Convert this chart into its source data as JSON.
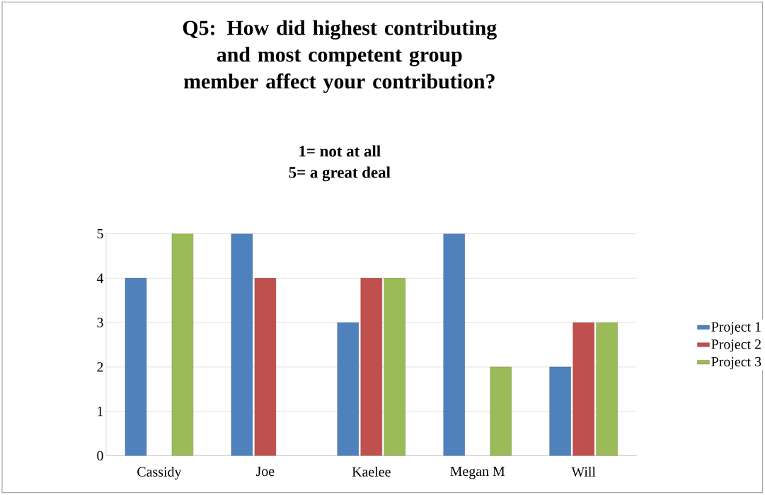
{
  "chart_data": {
    "type": "bar",
    "title": "Q5: How did highest contributing and most competent group member affect your contribution?",
    "subtitle": "1= not at all",
    "annotations": [
      "5= a great deal"
    ],
    "categories": [
      "Cassidy",
      "Joe",
      "Kaelee",
      "Megan M",
      "Will"
    ],
    "series": [
      {
        "name": "Project 1",
        "color": "#4f81bd",
        "values": [
          4,
          5,
          3,
          5,
          2
        ]
      },
      {
        "name": "Project 2",
        "color": "#c0504d",
        "values": [
          null,
          4,
          4,
          null,
          3
        ]
      },
      {
        "name": "Project 3",
        "color": "#9bbb59",
        "values": [
          5,
          null,
          4,
          2,
          3
        ]
      }
    ],
    "ylim": [
      0,
      5
    ],
    "yticks": [
      0,
      1,
      2,
      3,
      4,
      5
    ],
    "grid": "y",
    "legend": "right"
  }
}
